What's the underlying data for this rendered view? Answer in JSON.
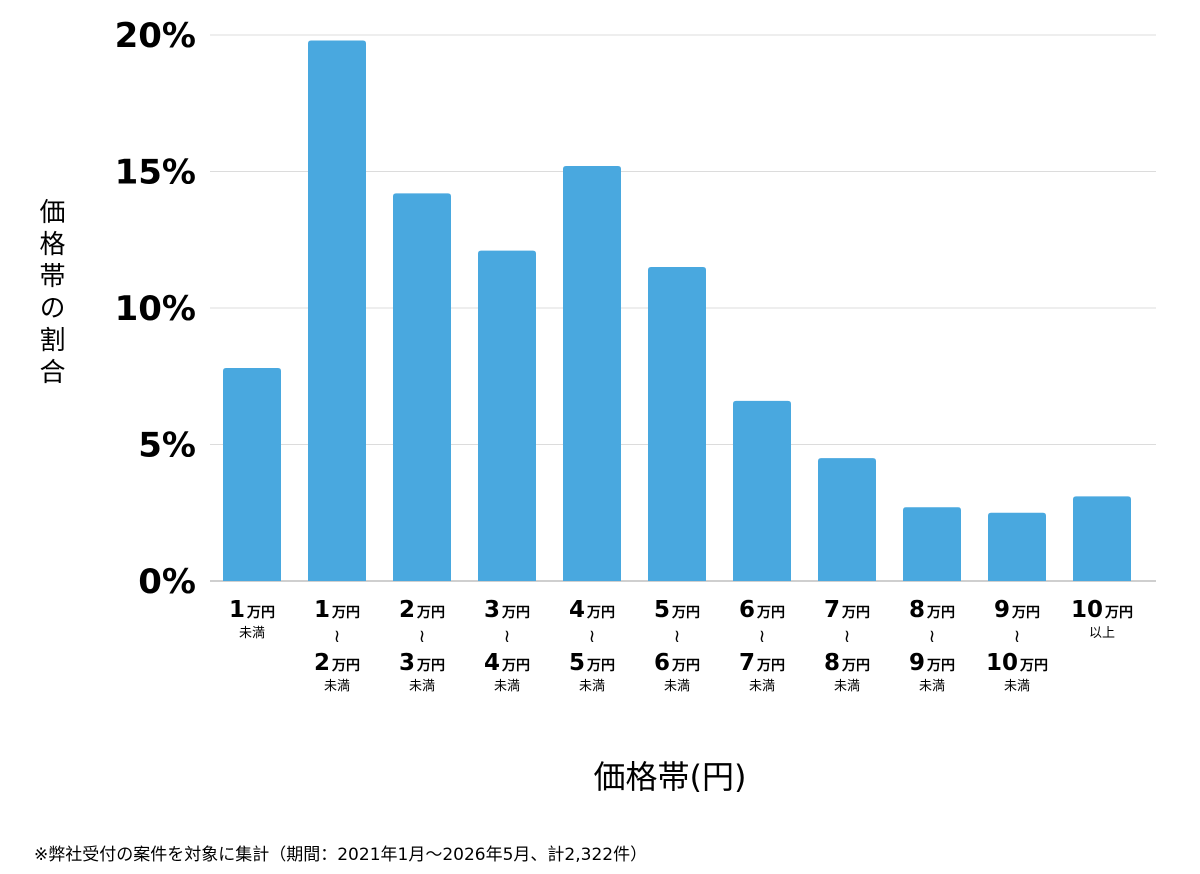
{
  "chart_data": {
    "type": "bar",
    "xlabel": "価格帯(円)",
    "ylabel": "価格帯の割合",
    "ylim": [
      0,
      20
    ],
    "yticks": [
      "0%",
      "5%",
      "10%",
      "15%",
      "20%"
    ],
    "grid": true,
    "color": "#49a8df",
    "categories": [
      {
        "from_num": "1",
        "from_unit": "万円",
        "to_num": "",
        "to_unit": "",
        "suffix": "未満"
      },
      {
        "from_num": "1",
        "from_unit": "万円",
        "to_num": "2",
        "to_unit": "万円",
        "suffix": "未満"
      },
      {
        "from_num": "2",
        "from_unit": "万円",
        "to_num": "3",
        "to_unit": "万円",
        "suffix": "未満"
      },
      {
        "from_num": "3",
        "from_unit": "万円",
        "to_num": "4",
        "to_unit": "万円",
        "suffix": "未満"
      },
      {
        "from_num": "4",
        "from_unit": "万円",
        "to_num": "5",
        "to_unit": "万円",
        "suffix": "未満"
      },
      {
        "from_num": "5",
        "from_unit": "万円",
        "to_num": "6",
        "to_unit": "万円",
        "suffix": "未満"
      },
      {
        "from_num": "6",
        "from_unit": "万円",
        "to_num": "7",
        "to_unit": "万円",
        "suffix": "未満"
      },
      {
        "from_num": "7",
        "from_unit": "万円",
        "to_num": "8",
        "to_unit": "万円",
        "suffix": "未満"
      },
      {
        "from_num": "8",
        "from_unit": "万円",
        "to_num": "9",
        "to_unit": "万円",
        "suffix": "未満"
      },
      {
        "from_num": "9",
        "from_unit": "万円",
        "to_num": "10",
        "to_unit": "万円",
        "suffix": "未満"
      },
      {
        "from_num": "10",
        "from_unit": "万円",
        "to_num": "",
        "to_unit": "",
        "suffix": "以上"
      }
    ],
    "values": [
      7.8,
      19.8,
      14.2,
      12.1,
      15.2,
      11.5,
      6.6,
      4.5,
      2.7,
      2.5,
      3.1
    ]
  },
  "range_mark": "≀",
  "footnote": "※弊社受付の案件を対象に集計（期間：2021年1月〜2026年5月、計2,322件）"
}
